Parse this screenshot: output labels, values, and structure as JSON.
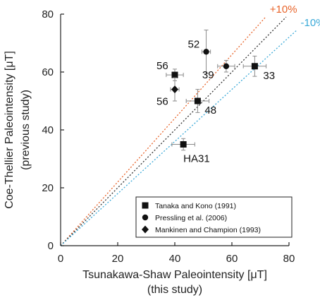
{
  "chart_data": {
    "type": "scatter",
    "xlabel": [
      "Tsunakawa-Shaw Paleointensity [μT]",
      "(this study)"
    ],
    "ylabel": [
      "Coe-Thellier Paleointensity [μT]",
      "(previous study)"
    ],
    "xlim": [
      0,
      80
    ],
    "ylim": [
      0,
      80
    ],
    "xticks": [
      "0",
      "20",
      "40",
      "60",
      "80"
    ],
    "yticks": [
      "0",
      "20",
      "40",
      "60",
      "80"
    ],
    "grid": false,
    "legend_position": "bottom-right",
    "series": [
      {
        "name": "Tanaka and Kono (1991)",
        "marker": "square",
        "points": [
          {
            "x": 40,
            "y": 59,
            "xerr": 3,
            "yerr": 2,
            "label": "56"
          },
          {
            "x": 48,
            "y": 50,
            "xerr": 4,
            "yerr": 4,
            "label": "48"
          },
          {
            "x": 68,
            "y": 62,
            "xerr": 4,
            "yerr": 3.5,
            "label": "33"
          },
          {
            "x": 43,
            "y": 35,
            "xerr": 4,
            "yerr": 2,
            "label": "HA31"
          }
        ]
      },
      {
        "name": "Pressling et al. (2006)",
        "marker": "circle",
        "points": [
          {
            "x": 51,
            "y": 67,
            "xerr": 1.5,
            "yerr": 7.5,
            "label": "52"
          },
          {
            "x": 58,
            "y": 62,
            "xerr": 3,
            "yerr": 2,
            "label": "39"
          }
        ]
      },
      {
        "name": "Mankinen and Champion (1993)",
        "marker": "diamond",
        "points": [
          {
            "x": 40,
            "y": 54,
            "xerr": 1.5,
            "yerr": 4,
            "label": "56"
          }
        ]
      }
    ],
    "reference_lines": [
      {
        "slope": 1.1,
        "label": "+10%",
        "color": "#e8642a",
        "x_end": 71.8
      },
      {
        "slope": 1.0,
        "label": "",
        "color": "#333333",
        "x_end": 79
      },
      {
        "slope": 0.9,
        "label": "-10%",
        "color": "#3aa9d8",
        "x_end": 82.6
      }
    ]
  }
}
